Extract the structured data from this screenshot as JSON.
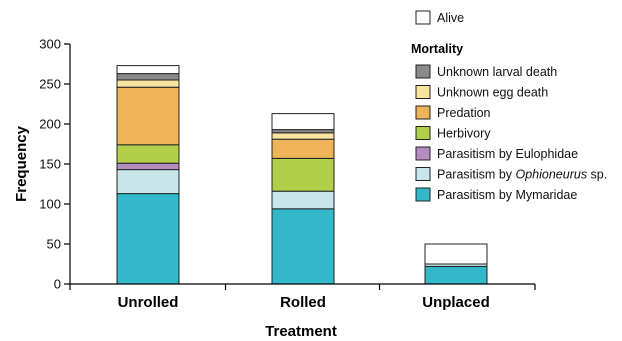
{
  "chart_data": {
    "type": "bar",
    "stacked": true,
    "xlabel": "Treatment",
    "ylabel": "Frequency",
    "ylim": [
      0,
      300
    ],
    "yticks": [
      0,
      50,
      100,
      150,
      200,
      250,
      300
    ],
    "categories": [
      "Unrolled",
      "Rolled",
      "Unplaced"
    ],
    "series": [
      {
        "name": "Parasitism by Mymaridae",
        "color": "#33b8c9",
        "values": [
          113,
          94,
          22
        ]
      },
      {
        "name": "Parasitism by Ophioneurus sp.",
        "name_prefix": "Parasitism by ",
        "name_italic": "Ophioneurus",
        "name_suffix": " sp.",
        "color": "#c8e6ea",
        "values": [
          30,
          22,
          3
        ]
      },
      {
        "name": "Parasitism by Eulophidae",
        "color": "#b48cc0",
        "values": [
          8,
          0,
          0
        ]
      },
      {
        "name": "Herbivory",
        "color": "#b2cf4a",
        "values": [
          23,
          41,
          0
        ]
      },
      {
        "name": "Predation",
        "color": "#eeb457",
        "values": [
          72,
          24,
          0
        ]
      },
      {
        "name": "Unknown egg death",
        "color": "#f8e49e",
        "values": [
          9,
          8,
          0
        ]
      },
      {
        "name": "Unknown larval death",
        "color": "#8a8a8a",
        "values": [
          8,
          4,
          0
        ]
      },
      {
        "name": "Alive",
        "color": "#ffffff",
        "values": [
          10,
          20,
          25
        ]
      }
    ],
    "legend": {
      "placement": "top-right",
      "top_entry": "Alive",
      "title": "Mortality",
      "entries": [
        "Unknown larval death",
        "Unknown egg death",
        "Predation",
        "Herbivory",
        "Parasitism by Eulophidae",
        "Parasitism by Ophioneurus sp.",
        "Parasitism by Mymaridae"
      ]
    },
    "grid": false
  }
}
